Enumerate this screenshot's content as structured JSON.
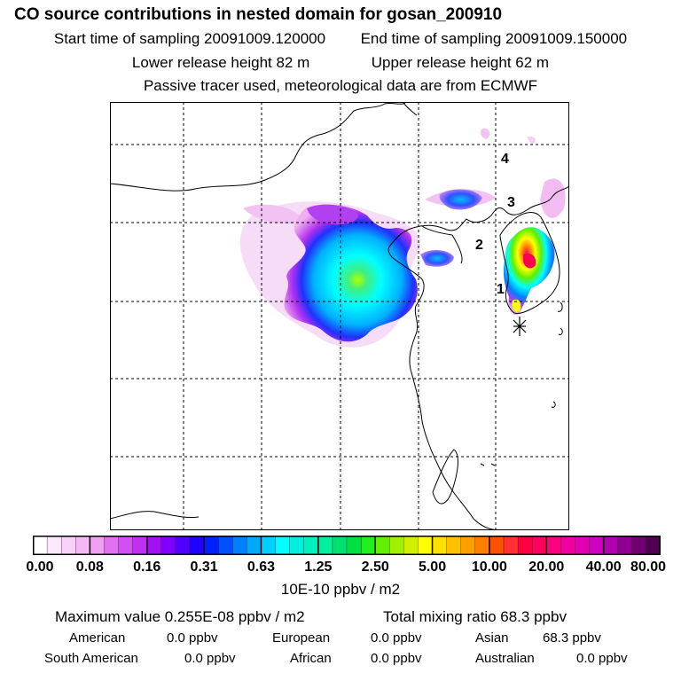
{
  "header": {
    "title": "CO  source contributions in nested domain for gosan_200910",
    "start_time": "Start time of sampling 20091009.120000",
    "end_time": "End time of sampling 20091009.150000",
    "lower_release": "Lower release height   82 m",
    "upper_release": "Upper release height   62 m",
    "tracer_note": "Passive tracer used, meteorological data are from ECMWF"
  },
  "map": {
    "sector_labels": [
      "1",
      "2",
      "3",
      "4"
    ],
    "receptor_marker": "asterisk-icon"
  },
  "colorbar": {
    "tick_labels": [
      "0.00",
      "0.08",
      "0.16",
      "0.31",
      "0.63",
      "1.25",
      "2.50",
      "5.00",
      "10.00",
      "20.00",
      "40.00",
      "80.00"
    ],
    "colors": [
      "#ffffff",
      "#fce8fc",
      "#f8d0f8",
      "#f4b8f4",
      "#f0a0f0",
      "#e070f0",
      "#d050f0",
      "#c030f0",
      "#a010f0",
      "#8000ff",
      "#5000ff",
      "#2000ff",
      "#0020ff",
      "#0050ff",
      "#0080ff",
      "#00a8ff",
      "#00d0ff",
      "#00ffff",
      "#00f0e0",
      "#00f0c0",
      "#00f0a0",
      "#00e070",
      "#00e040",
      "#20f020",
      "#60f000",
      "#a0f000",
      "#d0f000",
      "#ffff00",
      "#ffe000",
      "#ffc000",
      "#ffa000",
      "#ff8000",
      "#ff5000",
      "#ff3030",
      "#ff0040",
      "#ff0060",
      "#ff0080",
      "#f000a0",
      "#e000b0",
      "#d000c0",
      "#b000b0",
      "#900090",
      "#700070",
      "#500050"
    ],
    "units": "10E-10 ppbv / m2"
  },
  "stats": {
    "max_value": "Maximum value  0.255E-08 ppbv / m2",
    "total_mixing": "Total mixing ratio       68.3 ppbv",
    "american_label": "American",
    "american_value": "0.0 ppbv",
    "european_label": "European",
    "european_value": "0.0 ppbv",
    "asian_label": "Asian",
    "asian_value": "68.3 ppbv",
    "south_american_label": "South American",
    "south_american_value": "0.0 ppbv",
    "african_label": "African",
    "african_value": "0.0 ppbv",
    "australian_label": "Australian",
    "australian_value": "0.0 ppbv"
  }
}
